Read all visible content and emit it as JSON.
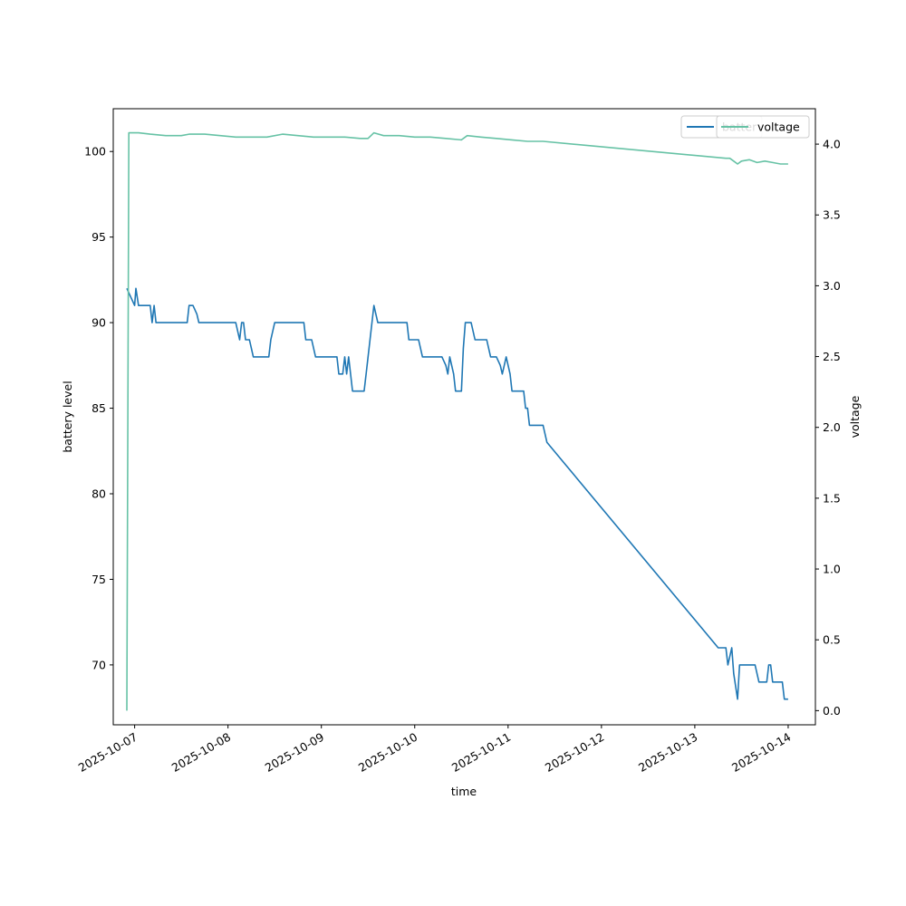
{
  "chart_data": {
    "type": "line",
    "xlabel": "time",
    "ylabel_left": "battery level",
    "ylabel_right": "voltage",
    "xlim": [
      "2025-10-06T18:30",
      "2025-10-14T07:00"
    ],
    "ylim_left": [
      66.5,
      102.5
    ],
    "ylim_right": [
      -0.1,
      4.25
    ],
    "x_ticks": [
      "2025-10-07",
      "2025-10-08",
      "2025-10-09",
      "2025-10-10",
      "2025-10-11",
      "2025-10-12",
      "2025-10-13",
      "2025-10-14"
    ],
    "y_ticks_left": [
      70,
      75,
      80,
      85,
      90,
      95,
      100
    ],
    "y_ticks_right": [
      0.0,
      0.5,
      1.0,
      1.5,
      2.0,
      2.5,
      3.0,
      3.5,
      4.0
    ],
    "grid": false,
    "legend_position": "top-right",
    "series": [
      {
        "name": "battery",
        "axis": "left",
        "color": "#1f77b4",
        "points": [
          [
            "2025-10-06T22:00",
            92
          ],
          [
            "2025-10-06T23:00",
            91.5
          ],
          [
            "2025-10-07T00:00",
            91
          ],
          [
            "2025-10-07T00:20",
            92
          ],
          [
            "2025-10-07T01:00",
            91
          ],
          [
            "2025-10-07T02:00",
            91
          ],
          [
            "2025-10-07T03:00",
            91
          ],
          [
            "2025-10-07T04:00",
            91
          ],
          [
            "2025-10-07T04:30",
            90
          ],
          [
            "2025-10-07T05:00",
            91
          ],
          [
            "2025-10-07T05:30",
            90
          ],
          [
            "2025-10-07T08:00",
            90
          ],
          [
            "2025-10-07T12:00",
            90
          ],
          [
            "2025-10-07T13:30",
            90
          ],
          [
            "2025-10-07T14:00",
            91
          ],
          [
            "2025-10-07T15:00",
            91
          ],
          [
            "2025-10-07T16:00",
            90.5
          ],
          [
            "2025-10-07T16:30",
            90
          ],
          [
            "2025-10-07T20:00",
            90
          ],
          [
            "2025-10-08T00:00",
            90
          ],
          [
            "2025-10-08T02:00",
            90
          ],
          [
            "2025-10-08T03:00",
            89
          ],
          [
            "2025-10-08T03:30",
            90
          ],
          [
            "2025-10-08T04:00",
            90
          ],
          [
            "2025-10-08T04:30",
            89
          ],
          [
            "2025-10-08T05:30",
            89
          ],
          [
            "2025-10-08T06:30",
            88
          ],
          [
            "2025-10-08T10:30",
            88
          ],
          [
            "2025-10-08T11:00",
            89
          ],
          [
            "2025-10-08T12:00",
            90
          ],
          [
            "2025-10-08T16:00",
            90
          ],
          [
            "2025-10-08T19:30",
            90
          ],
          [
            "2025-10-08T20:00",
            89
          ],
          [
            "2025-10-08T21:30",
            89
          ],
          [
            "2025-10-08T22:30",
            88
          ],
          [
            "2025-10-09T04:00",
            88
          ],
          [
            "2025-10-09T04:30",
            87
          ],
          [
            "2025-10-09T05:30",
            87
          ],
          [
            "2025-10-09T06:00",
            88
          ],
          [
            "2025-10-09T06:30",
            87
          ],
          [
            "2025-10-09T07:00",
            88
          ],
          [
            "2025-10-09T08:00",
            86
          ],
          [
            "2025-10-09T11:00",
            86
          ],
          [
            "2025-10-09T11:30",
            87
          ],
          [
            "2025-10-09T12:30",
            89
          ],
          [
            "2025-10-09T13:30",
            91
          ],
          [
            "2025-10-09T14:30",
            90
          ],
          [
            "2025-10-09T18:00",
            90
          ],
          [
            "2025-10-09T22:00",
            90
          ],
          [
            "2025-10-09T22:30",
            89
          ],
          [
            "2025-10-10T01:00",
            89
          ],
          [
            "2025-10-10T02:00",
            88
          ],
          [
            "2025-10-10T07:00",
            88
          ],
          [
            "2025-10-10T08:00",
            87.5
          ],
          [
            "2025-10-10T08:30",
            87
          ],
          [
            "2025-10-10T09:00",
            88
          ],
          [
            "2025-10-10T10:00",
            87
          ],
          [
            "2025-10-10T10:30",
            86
          ],
          [
            "2025-10-10T12:00",
            86
          ],
          [
            "2025-10-10T12:30",
            88.5
          ],
          [
            "2025-10-10T13:00",
            90
          ],
          [
            "2025-10-10T14:30",
            90
          ],
          [
            "2025-10-10T15:30",
            89
          ],
          [
            "2025-10-10T18:30",
            89
          ],
          [
            "2025-10-10T19:30",
            88
          ],
          [
            "2025-10-10T21:00",
            88
          ],
          [
            "2025-10-10T22:00",
            87.5
          ],
          [
            "2025-10-10T22:30",
            87
          ],
          [
            "2025-10-10T23:30",
            88
          ],
          [
            "2025-10-11T00:30",
            87
          ],
          [
            "2025-10-11T01:00",
            86
          ],
          [
            "2025-10-11T04:00",
            86
          ],
          [
            "2025-10-11T04:30",
            85
          ],
          [
            "2025-10-11T05:00",
            85
          ],
          [
            "2025-10-11T05:30",
            84
          ],
          [
            "2025-10-11T09:00",
            84
          ],
          [
            "2025-10-11T10:00",
            83
          ],
          [
            "2025-10-13T06:00",
            71
          ],
          [
            "2025-10-13T08:00",
            71
          ],
          [
            "2025-10-13T08:30",
            70
          ],
          [
            "2025-10-13T09:30",
            71
          ],
          [
            "2025-10-13T10:00",
            69.5
          ],
          [
            "2025-10-13T11:00",
            68
          ],
          [
            "2025-10-13T11:30",
            70
          ],
          [
            "2025-10-13T15:30",
            70
          ],
          [
            "2025-10-13T16:30",
            69
          ],
          [
            "2025-10-13T18:30",
            69
          ],
          [
            "2025-10-13T19:00",
            70
          ],
          [
            "2025-10-13T19:30",
            70
          ],
          [
            "2025-10-13T20:00",
            69
          ],
          [
            "2025-10-13T22:30",
            69
          ],
          [
            "2025-10-13T23:00",
            68
          ],
          [
            "2025-10-14T00:00",
            68
          ]
        ]
      },
      {
        "name": "voltage",
        "axis": "right",
        "color": "#66c2a5",
        "points": [
          [
            "2025-10-06T22:00",
            0.0
          ],
          [
            "2025-10-06T22:30",
            4.08
          ],
          [
            "2025-10-07T01:00",
            4.08
          ],
          [
            "2025-10-07T04:00",
            4.07
          ],
          [
            "2025-10-07T08:00",
            4.06
          ],
          [
            "2025-10-07T12:00",
            4.06
          ],
          [
            "2025-10-07T14:00",
            4.07
          ],
          [
            "2025-10-07T18:00",
            4.07
          ],
          [
            "2025-10-07T22:00",
            4.06
          ],
          [
            "2025-10-08T02:00",
            4.05
          ],
          [
            "2025-10-08T06:00",
            4.05
          ],
          [
            "2025-10-08T10:00",
            4.05
          ],
          [
            "2025-10-08T14:00",
            4.07
          ],
          [
            "2025-10-08T18:00",
            4.06
          ],
          [
            "2025-10-08T22:00",
            4.05
          ],
          [
            "2025-10-09T02:00",
            4.05
          ],
          [
            "2025-10-09T06:00",
            4.05
          ],
          [
            "2025-10-09T10:00",
            4.04
          ],
          [
            "2025-10-09T12:00",
            4.04
          ],
          [
            "2025-10-09T13:30",
            4.08
          ],
          [
            "2025-10-09T16:00",
            4.06
          ],
          [
            "2025-10-09T20:00",
            4.06
          ],
          [
            "2025-10-10T00:00",
            4.05
          ],
          [
            "2025-10-10T04:00",
            4.05
          ],
          [
            "2025-10-10T08:00",
            4.04
          ],
          [
            "2025-10-10T12:00",
            4.03
          ],
          [
            "2025-10-10T13:30",
            4.06
          ],
          [
            "2025-10-10T17:00",
            4.05
          ],
          [
            "2025-10-10T21:00",
            4.04
          ],
          [
            "2025-10-11T01:00",
            4.03
          ],
          [
            "2025-10-11T05:00",
            4.02
          ],
          [
            "2025-10-11T09:00",
            4.02
          ],
          [
            "2025-10-13T08:00",
            3.9
          ],
          [
            "2025-10-13T09:00",
            3.9
          ],
          [
            "2025-10-13T10:00",
            3.88
          ],
          [
            "2025-10-13T11:00",
            3.86
          ],
          [
            "2025-10-13T12:00",
            3.88
          ],
          [
            "2025-10-13T14:00",
            3.89
          ],
          [
            "2025-10-13T16:00",
            3.87
          ],
          [
            "2025-10-13T18:00",
            3.88
          ],
          [
            "2025-10-13T20:00",
            3.87
          ],
          [
            "2025-10-13T22:00",
            3.86
          ],
          [
            "2025-10-14T00:00",
            3.86
          ]
        ]
      }
    ],
    "legends": [
      {
        "entries": [
          "battery"
        ],
        "obscured_label": "batter"
      },
      {
        "entries": [
          "voltage"
        ]
      }
    ]
  }
}
